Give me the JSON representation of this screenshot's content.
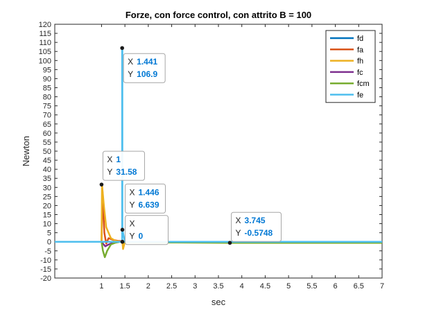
{
  "chart_data": {
    "type": "line",
    "title": "Forze, con force control, con attrito B = 100",
    "xlabel": "sec",
    "ylabel": "Newton",
    "xlim": [
      0,
      7
    ],
    "ylim": [
      -20,
      120
    ],
    "xticks": [
      1,
      1.5,
      2,
      2.5,
      3,
      3.5,
      4,
      4.5,
      5,
      5.5,
      6,
      6.5,
      7
    ],
    "yticks": [
      -20,
      -15,
      -10,
      -5,
      0,
      5,
      10,
      15,
      20,
      25,
      30,
      35,
      40,
      45,
      50,
      55,
      60,
      65,
      70,
      75,
      80,
      85,
      90,
      95,
      100,
      105,
      110,
      115,
      120
    ],
    "legend_position": "top-right",
    "series": [
      {
        "name": "fd",
        "color": "#0072bd",
        "x": [
          0,
          7
        ],
        "y": [
          0,
          0
        ]
      },
      {
        "name": "fa",
        "color": "#d95319",
        "x": [
          0,
          1,
          1.02,
          1.06,
          1.1,
          1.15,
          1.25,
          1.35,
          1.44,
          1.5,
          7
        ],
        "y": [
          0,
          0,
          28,
          5,
          -1,
          2,
          1,
          0.5,
          0.3,
          0,
          0
        ]
      },
      {
        "name": "fh",
        "color": "#edb120",
        "x": [
          0,
          1,
          1.01,
          1.05,
          1.1,
          1.2,
          1.3,
          1.4,
          1.446,
          1.46,
          1.5,
          7
        ],
        "y": [
          0,
          0,
          31.58,
          20,
          8,
          2,
          0.5,
          0,
          0,
          -4,
          0,
          0
        ]
      },
      {
        "name": "fc",
        "color": "#7e2f8e",
        "x": [
          0,
          1,
          1.03,
          1.08,
          1.15,
          1.25,
          1.35,
          1.5,
          7
        ],
        "y": [
          0,
          0,
          -1,
          -2.5,
          -1.5,
          -0.5,
          0,
          0,
          0
        ]
      },
      {
        "name": "fcm",
        "color": "#77ac30",
        "x": [
          0,
          1,
          1.03,
          1.07,
          1.12,
          1.2,
          1.3,
          1.4,
          1.5,
          2.5,
          3.745,
          7
        ],
        "y": [
          0,
          0,
          -5,
          -8.5,
          -5,
          -1.5,
          -0.5,
          0,
          -0.2,
          -0.4,
          -0.5748,
          -0.6
        ]
      },
      {
        "name": "fe",
        "color": "#4dbeee",
        "x": [
          0,
          1.441,
          1.441,
          1.445,
          1.446,
          1.5,
          7
        ],
        "y": [
          0,
          0,
          106.9,
          106.9,
          6.639,
          0,
          0
        ]
      }
    ],
    "datatips": [
      {
        "x": 1.441,
        "y": 106.9,
        "x_text": "1.441",
        "y_text": "106.9"
      },
      {
        "x": 1,
        "y": 31.58,
        "x_text": "1",
        "y_text": "31.58"
      },
      {
        "x": 1.446,
        "y": 6.639,
        "x_text": "1.446",
        "y_text": "6.639"
      },
      {
        "x": 1.446,
        "y": 0,
        "x_text": "",
        "y_text": "0"
      },
      {
        "x": 3.745,
        "y": -0.5748,
        "x_text": "3.745",
        "y_text": "-0.5748"
      }
    ]
  }
}
